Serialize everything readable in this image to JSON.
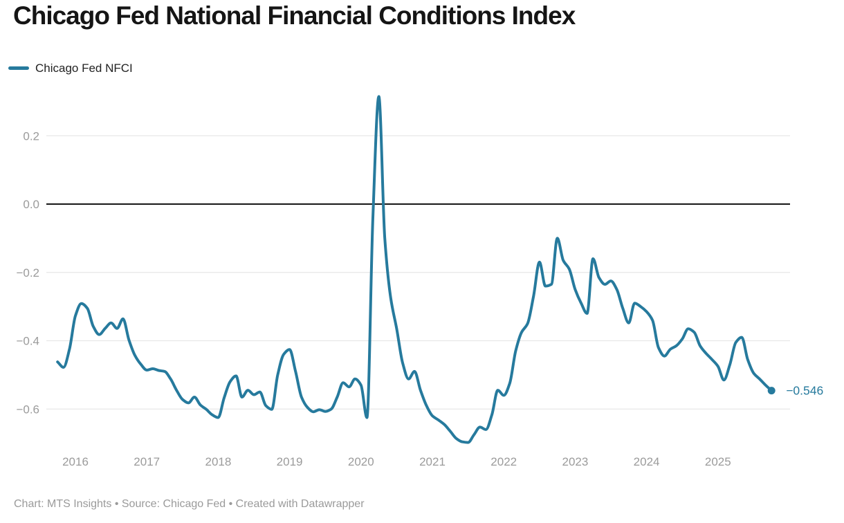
{
  "header": {
    "title": "Chicago Fed National Financial Conditions Index"
  },
  "legend": {
    "label": "Chicago Fed NFCI",
    "color": "#267a9d"
  },
  "footer": {
    "text": "Chart: MTS Insights • Source: Chicago Fed • Created with Datawrapper"
  },
  "chart_data": {
    "type": "line",
    "title": "Chicago Fed National Financial Conditions Index",
    "grid": "horizontal",
    "zero_baseline": true,
    "legend_position": "top-left",
    "x_tick_labels": [
      "2016",
      "2017",
      "2018",
      "2019",
      "2020",
      "2021",
      "2022",
      "2023",
      "2024",
      "2025"
    ],
    "y_tick_labels": [
      "0.2",
      "0.0",
      "−0.2",
      "−0.4",
      "−0.6"
    ],
    "y_tick_values": [
      0.2,
      0.0,
      -0.2,
      -0.4,
      -0.6
    ],
    "ylim": [
      -0.73,
      0.35
    ],
    "end_label": "−0.546",
    "end_value": -0.546,
    "colors": {
      "line": "#267a9d",
      "grid": "#e7e7e7",
      "zero_line": "#161616",
      "axis_text": "#9b9b9b"
    },
    "series": [
      {
        "name": "Chicago Fed NFCI",
        "color": "#267a9d",
        "frequency": "monthly",
        "start_month": "2015-10",
        "end_month": "2025-10",
        "values": [
          -0.462,
          -0.478,
          -0.425,
          -0.327,
          -0.291,
          -0.305,
          -0.358,
          -0.382,
          -0.364,
          -0.348,
          -0.364,
          -0.336,
          -0.398,
          -0.443,
          -0.469,
          -0.486,
          -0.482,
          -0.487,
          -0.49,
          -0.512,
          -0.545,
          -0.572,
          -0.582,
          -0.565,
          -0.588,
          -0.601,
          -0.617,
          -0.625,
          -0.567,
          -0.52,
          -0.503,
          -0.565,
          -0.545,
          -0.558,
          -0.55,
          -0.59,
          -0.601,
          -0.5,
          -0.44,
          -0.426,
          -0.49,
          -0.565,
          -0.595,
          -0.608,
          -0.602,
          -0.607,
          -0.6,
          -0.565,
          -0.523,
          -0.535,
          -0.512,
          -0.53,
          -0.625,
          -0.04,
          0.315,
          -0.1,
          -0.275,
          -0.365,
          -0.465,
          -0.512,
          -0.49,
          -0.545,
          -0.59,
          -0.62,
          -0.632,
          -0.645,
          -0.665,
          -0.686,
          -0.696,
          -0.698,
          -0.675,
          -0.653,
          -0.66,
          -0.617,
          -0.545,
          -0.56,
          -0.525,
          -0.43,
          -0.375,
          -0.35,
          -0.27,
          -0.17,
          -0.24,
          -0.235,
          -0.1,
          -0.165,
          -0.19,
          -0.25,
          -0.29,
          -0.32,
          -0.16,
          -0.215,
          -0.235,
          -0.225,
          -0.25,
          -0.305,
          -0.348,
          -0.29,
          -0.3,
          -0.315,
          -0.34,
          -0.42,
          -0.445,
          -0.425,
          -0.415,
          -0.395,
          -0.365,
          -0.375,
          -0.415,
          -0.437,
          -0.455,
          -0.475,
          -0.515,
          -0.47,
          -0.405,
          -0.39,
          -0.455,
          -0.495,
          -0.512,
          -0.53,
          -0.546
        ]
      }
    ]
  }
}
